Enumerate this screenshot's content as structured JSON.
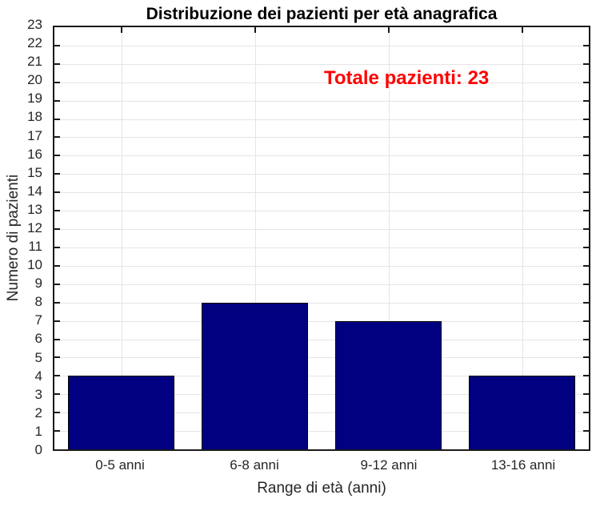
{
  "chart_data": {
    "type": "bar",
    "title": "Distribuzione dei pazienti per età anagrafica",
    "xlabel": "Range di età (anni)",
    "ylabel": "Numero di pazienti",
    "categories": [
      "0-5 anni",
      "6-8 anni",
      "9-12 anni",
      "13-16 anni"
    ],
    "values": [
      4,
      8,
      7,
      4
    ],
    "ylim": [
      0,
      23
    ],
    "yticks": [
      0,
      1,
      2,
      3,
      4,
      5,
      6,
      7,
      8,
      9,
      10,
      11,
      12,
      13,
      14,
      15,
      16,
      17,
      18,
      19,
      20,
      21,
      22,
      23
    ],
    "bar_width_fraction": 0.8,
    "grid": true,
    "legend": null,
    "annotation": {
      "text": "Totale pazienti: 23",
      "color": "#ff0000"
    },
    "colors": {
      "bar_fill": "#000080",
      "bar_edge": "#000000",
      "grid_color": "#e5e5e5",
      "axis_color": "#1a1a1a",
      "tick_label_color": "#262626",
      "title_color": "#000000",
      "background": "#ffffff"
    }
  }
}
